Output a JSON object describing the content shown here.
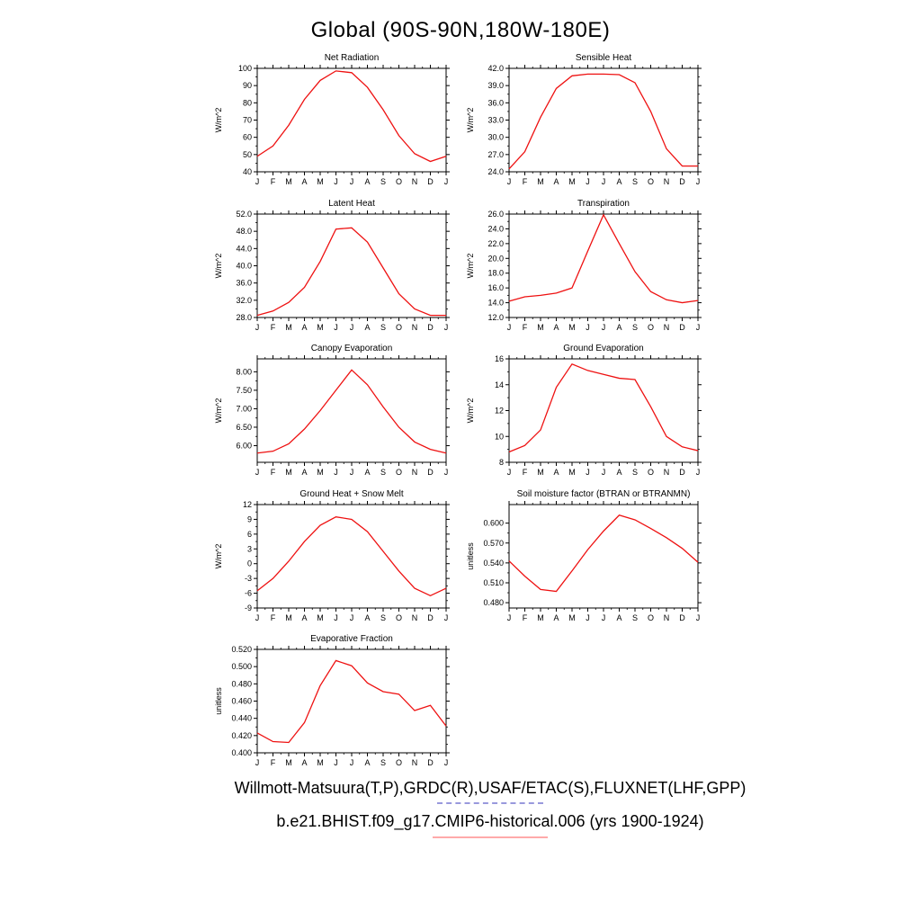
{
  "page_title": "Global (90S-90N,180W-180E)",
  "x_categories": [
    "J",
    "F",
    "M",
    "A",
    "M",
    "J",
    "J",
    "A",
    "S",
    "O",
    "N",
    "D",
    "J"
  ],
  "line_color": "#ee1111",
  "chart_data": [
    {
      "type": "line",
      "title": "Net Radiation",
      "ylabel": "W/m^2",
      "ylim": [
        40,
        100
      ],
      "yticks": [
        40,
        50,
        60,
        70,
        80,
        90,
        100
      ],
      "ydecimals": 0,
      "categories": [
        "J",
        "F",
        "M",
        "A",
        "M",
        "J",
        "J",
        "A",
        "S",
        "O",
        "N",
        "D",
        "J"
      ],
      "values": [
        49,
        55,
        67,
        82,
        93,
        98.5,
        97.5,
        89,
        76,
        61,
        50.5,
        46,
        49
      ]
    },
    {
      "type": "line",
      "title": "Sensible Heat",
      "ylabel": "W/m^2",
      "ylim": [
        24,
        42
      ],
      "yticks": [
        24,
        27,
        30,
        33,
        36,
        39,
        42
      ],
      "ydecimals": 1,
      "categories": [
        "J",
        "F",
        "M",
        "A",
        "M",
        "J",
        "J",
        "A",
        "S",
        "O",
        "N",
        "D",
        "J"
      ],
      "values": [
        24.5,
        27.5,
        33.5,
        38.5,
        40.7,
        41.0,
        41.0,
        40.9,
        39.5,
        34.5,
        28.0,
        25.0,
        25.0
      ]
    },
    {
      "type": "line",
      "title": "Latent Heat",
      "ylabel": "W/m^2",
      "ylim": [
        28,
        52
      ],
      "yticks": [
        28,
        32,
        36,
        40,
        44,
        48,
        52
      ],
      "ydecimals": 1,
      "categories": [
        "J",
        "F",
        "M",
        "A",
        "M",
        "J",
        "J",
        "A",
        "S",
        "O",
        "N",
        "D",
        "J"
      ],
      "values": [
        28.5,
        29.5,
        31.5,
        35.0,
        41.0,
        48.5,
        48.8,
        45.5,
        39.5,
        33.5,
        30.0,
        28.5,
        28.5
      ]
    },
    {
      "type": "line",
      "title": "Transpiration",
      "ylabel": "W/m^2",
      "ylim": [
        12,
        26
      ],
      "yticks": [
        12,
        14,
        16,
        18,
        20,
        22,
        24,
        26
      ],
      "ydecimals": 1,
      "categories": [
        "J",
        "F",
        "M",
        "A",
        "M",
        "J",
        "J",
        "A",
        "S",
        "O",
        "N",
        "D",
        "J"
      ],
      "values": [
        14.2,
        14.8,
        15.0,
        15.3,
        16.0,
        21.0,
        25.9,
        22.0,
        18.2,
        15.5,
        14.4,
        14.0,
        14.3
      ]
    },
    {
      "type": "line",
      "title": "Canopy Evaporation",
      "ylabel": "W/m^2",
      "ylim": [
        5.55,
        8.35
      ],
      "yticks": [
        6.0,
        6.5,
        7.0,
        7.5,
        8.0
      ],
      "ydecimals": 2,
      "categories": [
        "J",
        "F",
        "M",
        "A",
        "M",
        "J",
        "J",
        "A",
        "S",
        "O",
        "N",
        "D",
        "J"
      ],
      "values": [
        5.8,
        5.85,
        6.05,
        6.45,
        6.95,
        7.5,
        8.05,
        7.65,
        7.05,
        6.5,
        6.1,
        5.9,
        5.8
      ]
    },
    {
      "type": "line",
      "title": "Ground Evaporation",
      "ylabel": "W/m^2",
      "ylim": [
        8,
        16
      ],
      "yticks": [
        8,
        10,
        12,
        14,
        16
      ],
      "ydecimals": 0,
      "categories": [
        "J",
        "F",
        "M",
        "A",
        "M",
        "J",
        "J",
        "A",
        "S",
        "O",
        "N",
        "D",
        "J"
      ],
      "values": [
        8.8,
        9.3,
        10.5,
        13.8,
        15.6,
        15.1,
        14.8,
        14.5,
        14.4,
        12.3,
        10.0,
        9.2,
        8.9
      ]
    },
    {
      "type": "line",
      "title": "Ground Heat + Snow Melt",
      "ylabel": "W/m^2",
      "ylim": [
        -9,
        12
      ],
      "yticks": [
        -9,
        -6,
        -3,
        0,
        3,
        6,
        9,
        12
      ],
      "ydecimals": 0,
      "categories": [
        "J",
        "F",
        "M",
        "A",
        "M",
        "J",
        "J",
        "A",
        "S",
        "O",
        "N",
        "D",
        "J"
      ],
      "values": [
        -5.5,
        -3.0,
        0.5,
        4.5,
        7.8,
        9.5,
        9.0,
        6.5,
        2.5,
        -1.5,
        -5.0,
        -6.5,
        -5.0
      ]
    },
    {
      "type": "line",
      "title": "Soil moisture factor (BTRAN or BTRANMN)",
      "ylabel": "unitless",
      "ylim": [
        0.472,
        0.628
      ],
      "yticks": [
        0.48,
        0.51,
        0.54,
        0.57,
        0.6
      ],
      "ydecimals": 3,
      "categories": [
        "J",
        "F",
        "M",
        "A",
        "M",
        "J",
        "J",
        "A",
        "S",
        "O",
        "N",
        "D",
        "J"
      ],
      "values": [
        0.543,
        0.52,
        0.5,
        0.497,
        0.528,
        0.56,
        0.588,
        0.612,
        0.605,
        0.592,
        0.578,
        0.562,
        0.541
      ]
    },
    {
      "type": "line",
      "title": "Evaporative Fraction",
      "ylabel": "unitless",
      "ylim": [
        0.4,
        0.52
      ],
      "yticks": [
        0.4,
        0.42,
        0.44,
        0.46,
        0.48,
        0.5,
        0.52
      ],
      "ydecimals": 3,
      "categories": [
        "J",
        "F",
        "M",
        "A",
        "M",
        "J",
        "J",
        "A",
        "S",
        "O",
        "N",
        "D",
        "J"
      ],
      "values": [
        0.423,
        0.413,
        0.412,
        0.435,
        0.478,
        0.507,
        0.501,
        0.481,
        0.471,
        0.468,
        0.449,
        0.455,
        0.431
      ]
    }
  ],
  "footer": {
    "line1": "Willmott-Matsuura(T,P),GRDC(R),USAF/ETAC(S),FLUXNET(LHF,GPP)",
    "line2": "b.e21.BHIST.f09_g17.CMIP6-historical.006 (yrs 1900-1924)",
    "legend_obs_color": "#9999dd",
    "legend_case_color": "#ffaaaa"
  }
}
